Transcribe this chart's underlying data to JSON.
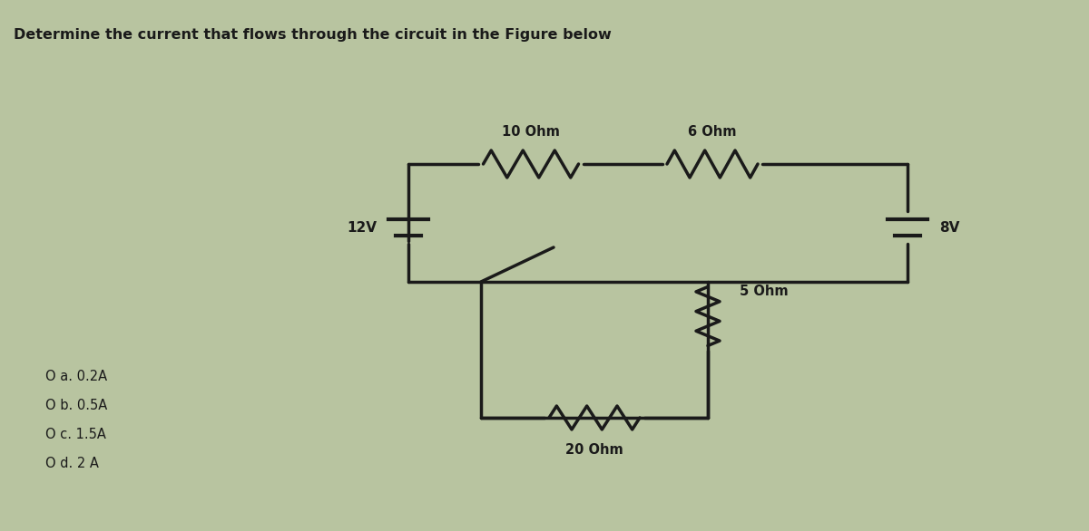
{
  "title": "Determine the current that flows through the circuit in the Figure below",
  "bg_color": "#b8c4a0",
  "circuit_color": "#1a1a1a",
  "text_color": "#1a1a1a",
  "choices": [
    "O a. 0.2A",
    "O b. 0.5A",
    "O c. 1.5A",
    "O d. 2 A"
  ],
  "label_12v": "12V",
  "label_8v": "8V",
  "label_10ohm": "10 Ohm",
  "label_6ohm": "6 Ohm",
  "label_5ohm": "5 Ohm",
  "label_20ohm": "20 Ohm"
}
